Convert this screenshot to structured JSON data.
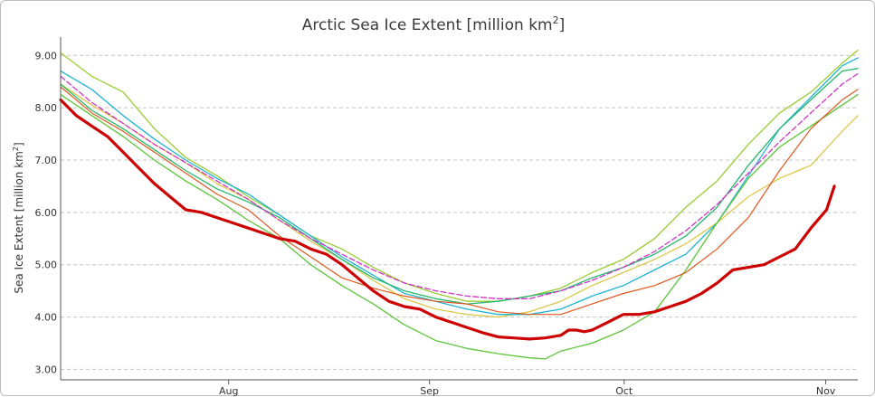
{
  "chart_data": {
    "type": "line",
    "title": "Arctic Sea Ice Extent [million km",
    "title_sup": "2",
    "title_end": "]",
    "ylabel": "Sea Ice Extent [million km",
    "ylabel_sup": "2",
    "ylabel_end": "]",
    "xlabel": "",
    "ylim": [
      2.8,
      9.35
    ],
    "xlim": [
      0,
      102
    ],
    "x_ticks": [
      {
        "label": "Aug",
        "x": 21.5
      },
      {
        "label": "Sep",
        "x": 47.2
      },
      {
        "label": "Oct",
        "x": 72.1
      },
      {
        "label": "Nov",
        "x": 97.9
      }
    ],
    "y_ticks": [
      "3.00",
      "4.00",
      "5.00",
      "6.00",
      "7.00",
      "8.00",
      "9.00"
    ],
    "y_tick_values": [
      3,
      4,
      5,
      6,
      7,
      8,
      9
    ],
    "grid": true,
    "series": [
      {
        "color": "#9acd32",
        "width": 1.3,
        "dash": false,
        "points": [
          [
            0,
            9.05
          ],
          [
            4,
            8.6
          ],
          [
            8,
            8.3
          ],
          [
            12,
            7.6
          ],
          [
            16,
            7.05
          ],
          [
            20,
            6.7
          ],
          [
            24,
            6.3
          ],
          [
            28,
            5.95
          ],
          [
            32,
            5.55
          ],
          [
            36,
            5.3
          ],
          [
            40,
            4.95
          ],
          [
            44,
            4.65
          ],
          [
            48,
            4.45
          ],
          [
            52,
            4.3
          ],
          [
            56,
            4.3
          ],
          [
            60,
            4.4
          ],
          [
            64,
            4.55
          ],
          [
            68,
            4.85
          ],
          [
            72,
            5.1
          ],
          [
            76,
            5.5
          ],
          [
            80,
            6.1
          ],
          [
            84,
            6.6
          ],
          [
            88,
            7.3
          ],
          [
            92,
            7.9
          ],
          [
            96,
            8.3
          ],
          [
            100,
            8.85
          ],
          [
            102,
            9.1
          ]
        ]
      },
      {
        "color": "#dcc84a",
        "width": 1.3,
        "dash": false,
        "points": [
          [
            0,
            8.45
          ],
          [
            4,
            8.05
          ],
          [
            8,
            7.7
          ],
          [
            12,
            7.3
          ],
          [
            16,
            6.95
          ],
          [
            20,
            6.55
          ],
          [
            24,
            6.25
          ],
          [
            28,
            5.85
          ],
          [
            32,
            5.45
          ],
          [
            36,
            5.1
          ],
          [
            40,
            4.7
          ],
          [
            44,
            4.35
          ],
          [
            48,
            4.15
          ],
          [
            52,
            4.05
          ],
          [
            56,
            4.0
          ],
          [
            60,
            4.1
          ],
          [
            64,
            4.3
          ],
          [
            68,
            4.6
          ],
          [
            72,
            4.85
          ],
          [
            76,
            5.1
          ],
          [
            80,
            5.4
          ],
          [
            84,
            5.8
          ],
          [
            88,
            6.3
          ],
          [
            92,
            6.65
          ],
          [
            96,
            6.9
          ],
          [
            100,
            7.55
          ],
          [
            102,
            7.85
          ]
        ]
      },
      {
        "color": "#1eb4d2",
        "width": 1.3,
        "dash": false,
        "points": [
          [
            0,
            8.7
          ],
          [
            4,
            8.35
          ],
          [
            8,
            7.85
          ],
          [
            12,
            7.4
          ],
          [
            16,
            7.0
          ],
          [
            20,
            6.65
          ],
          [
            24,
            6.35
          ],
          [
            28,
            5.95
          ],
          [
            32,
            5.55
          ],
          [
            36,
            5.15
          ],
          [
            40,
            4.8
          ],
          [
            44,
            4.45
          ],
          [
            48,
            4.3
          ],
          [
            52,
            4.15
          ],
          [
            56,
            4.05
          ],
          [
            60,
            4.05
          ],
          [
            64,
            4.15
          ],
          [
            68,
            4.4
          ],
          [
            72,
            4.6
          ],
          [
            76,
            4.9
          ],
          [
            80,
            5.2
          ],
          [
            84,
            5.8
          ],
          [
            88,
            6.7
          ],
          [
            92,
            7.6
          ],
          [
            96,
            8.2
          ],
          [
            100,
            8.8
          ],
          [
            102,
            8.95
          ]
        ]
      },
      {
        "color": "#26b86c",
        "width": 1.3,
        "dash": false,
        "points": [
          [
            0,
            8.45
          ],
          [
            4,
            7.95
          ],
          [
            8,
            7.6
          ],
          [
            12,
            7.2
          ],
          [
            16,
            6.8
          ],
          [
            20,
            6.45
          ],
          [
            24,
            6.2
          ],
          [
            28,
            5.9
          ],
          [
            32,
            5.5
          ],
          [
            36,
            5.1
          ],
          [
            40,
            4.75
          ],
          [
            44,
            4.5
          ],
          [
            48,
            4.35
          ],
          [
            52,
            4.25
          ],
          [
            56,
            4.3
          ],
          [
            60,
            4.4
          ],
          [
            64,
            4.5
          ],
          [
            68,
            4.75
          ],
          [
            72,
            4.95
          ],
          [
            76,
            5.2
          ],
          [
            80,
            5.55
          ],
          [
            84,
            6.1
          ],
          [
            88,
            6.9
          ],
          [
            92,
            7.6
          ],
          [
            96,
            8.15
          ],
          [
            100,
            8.7
          ],
          [
            102,
            8.75
          ]
        ]
      },
      {
        "color": "#5bc43a",
        "width": 1.3,
        "dash": false,
        "points": [
          [
            0,
            8.25
          ],
          [
            4,
            7.85
          ],
          [
            8,
            7.45
          ],
          [
            12,
            7.0
          ],
          [
            16,
            6.6
          ],
          [
            20,
            6.25
          ],
          [
            24,
            5.85
          ],
          [
            28,
            5.5
          ],
          [
            32,
            5.0
          ],
          [
            36,
            4.6
          ],
          [
            40,
            4.25
          ],
          [
            44,
            3.85
          ],
          [
            48,
            3.55
          ],
          [
            52,
            3.4
          ],
          [
            56,
            3.3
          ],
          [
            60,
            3.22
          ],
          [
            62,
            3.2
          ],
          [
            64,
            3.35
          ],
          [
            68,
            3.5
          ],
          [
            72,
            3.75
          ],
          [
            76,
            4.1
          ],
          [
            80,
            4.9
          ],
          [
            84,
            5.8
          ],
          [
            88,
            6.65
          ],
          [
            92,
            7.25
          ],
          [
            96,
            7.65
          ],
          [
            100,
            8.05
          ],
          [
            102,
            8.25
          ]
        ]
      },
      {
        "color": "#e0571f",
        "width": 1.2,
        "dash": false,
        "points": [
          [
            0,
            8.4
          ],
          [
            4,
            7.9
          ],
          [
            8,
            7.55
          ],
          [
            12,
            7.15
          ],
          [
            16,
            6.75
          ],
          [
            20,
            6.35
          ],
          [
            24,
            6.05
          ],
          [
            28,
            5.55
          ],
          [
            32,
            5.15
          ],
          [
            36,
            4.75
          ],
          [
            40,
            4.55
          ],
          [
            44,
            4.4
          ],
          [
            48,
            4.3
          ],
          [
            52,
            4.25
          ],
          [
            56,
            4.1
          ],
          [
            60,
            4.05
          ],
          [
            64,
            4.05
          ],
          [
            68,
            4.25
          ],
          [
            72,
            4.45
          ],
          [
            76,
            4.6
          ],
          [
            80,
            4.85
          ],
          [
            84,
            5.3
          ],
          [
            88,
            5.9
          ],
          [
            92,
            6.8
          ],
          [
            96,
            7.6
          ],
          [
            100,
            8.15
          ],
          [
            102,
            8.35
          ]
        ]
      },
      {
        "color": "#d233c8",
        "width": 1.3,
        "dash": true,
        "points": [
          [
            0,
            8.6
          ],
          [
            4,
            8.1
          ],
          [
            8,
            7.7
          ],
          [
            12,
            7.3
          ],
          [
            16,
            6.95
          ],
          [
            20,
            6.6
          ],
          [
            24,
            6.25
          ],
          [
            28,
            5.85
          ],
          [
            32,
            5.5
          ],
          [
            36,
            5.2
          ],
          [
            40,
            4.9
          ],
          [
            44,
            4.65
          ],
          [
            48,
            4.5
          ],
          [
            52,
            4.4
          ],
          [
            56,
            4.35
          ],
          [
            60,
            4.35
          ],
          [
            64,
            4.5
          ],
          [
            68,
            4.7
          ],
          [
            72,
            4.95
          ],
          [
            76,
            5.25
          ],
          [
            80,
            5.65
          ],
          [
            84,
            6.15
          ],
          [
            88,
            6.75
          ],
          [
            92,
            7.35
          ],
          [
            96,
            7.9
          ],
          [
            100,
            8.45
          ],
          [
            102,
            8.65
          ]
        ]
      },
      {
        "color": "#cc0000",
        "width": 3.2,
        "dash": false,
        "points": [
          [
            0,
            8.15
          ],
          [
            2,
            7.85
          ],
          [
            4,
            7.65
          ],
          [
            6,
            7.45
          ],
          [
            8,
            7.15
          ],
          [
            10,
            6.85
          ],
          [
            12,
            6.55
          ],
          [
            14,
            6.3
          ],
          [
            16,
            6.05
          ],
          [
            18,
            6.0
          ],
          [
            20,
            5.9
          ],
          [
            22,
            5.8
          ],
          [
            24,
            5.7
          ],
          [
            26,
            5.6
          ],
          [
            28,
            5.5
          ],
          [
            30,
            5.45
          ],
          [
            32,
            5.3
          ],
          [
            34,
            5.2
          ],
          [
            36,
            5.0
          ],
          [
            38,
            4.75
          ],
          [
            40,
            4.5
          ],
          [
            42,
            4.3
          ],
          [
            44,
            4.2
          ],
          [
            46,
            4.15
          ],
          [
            48,
            4.0
          ],
          [
            50,
            3.9
          ],
          [
            52,
            3.8
          ],
          [
            54,
            3.7
          ],
          [
            56,
            3.62
          ],
          [
            58,
            3.6
          ],
          [
            60,
            3.58
          ],
          [
            62,
            3.6
          ],
          [
            64,
            3.65
          ],
          [
            65,
            3.75
          ],
          [
            66,
            3.75
          ],
          [
            67,
            3.72
          ],
          [
            68,
            3.75
          ],
          [
            70,
            3.9
          ],
          [
            72,
            4.05
          ],
          [
            74,
            4.05
          ],
          [
            76,
            4.1
          ],
          [
            78,
            4.2
          ],
          [
            80,
            4.3
          ],
          [
            82,
            4.45
          ],
          [
            84,
            4.65
          ],
          [
            86,
            4.9
          ],
          [
            88,
            4.95
          ],
          [
            90,
            5.0
          ],
          [
            92,
            5.15
          ],
          [
            94,
            5.3
          ],
          [
            96,
            5.7
          ],
          [
            98,
            6.05
          ],
          [
            99,
            6.5
          ]
        ]
      }
    ]
  }
}
